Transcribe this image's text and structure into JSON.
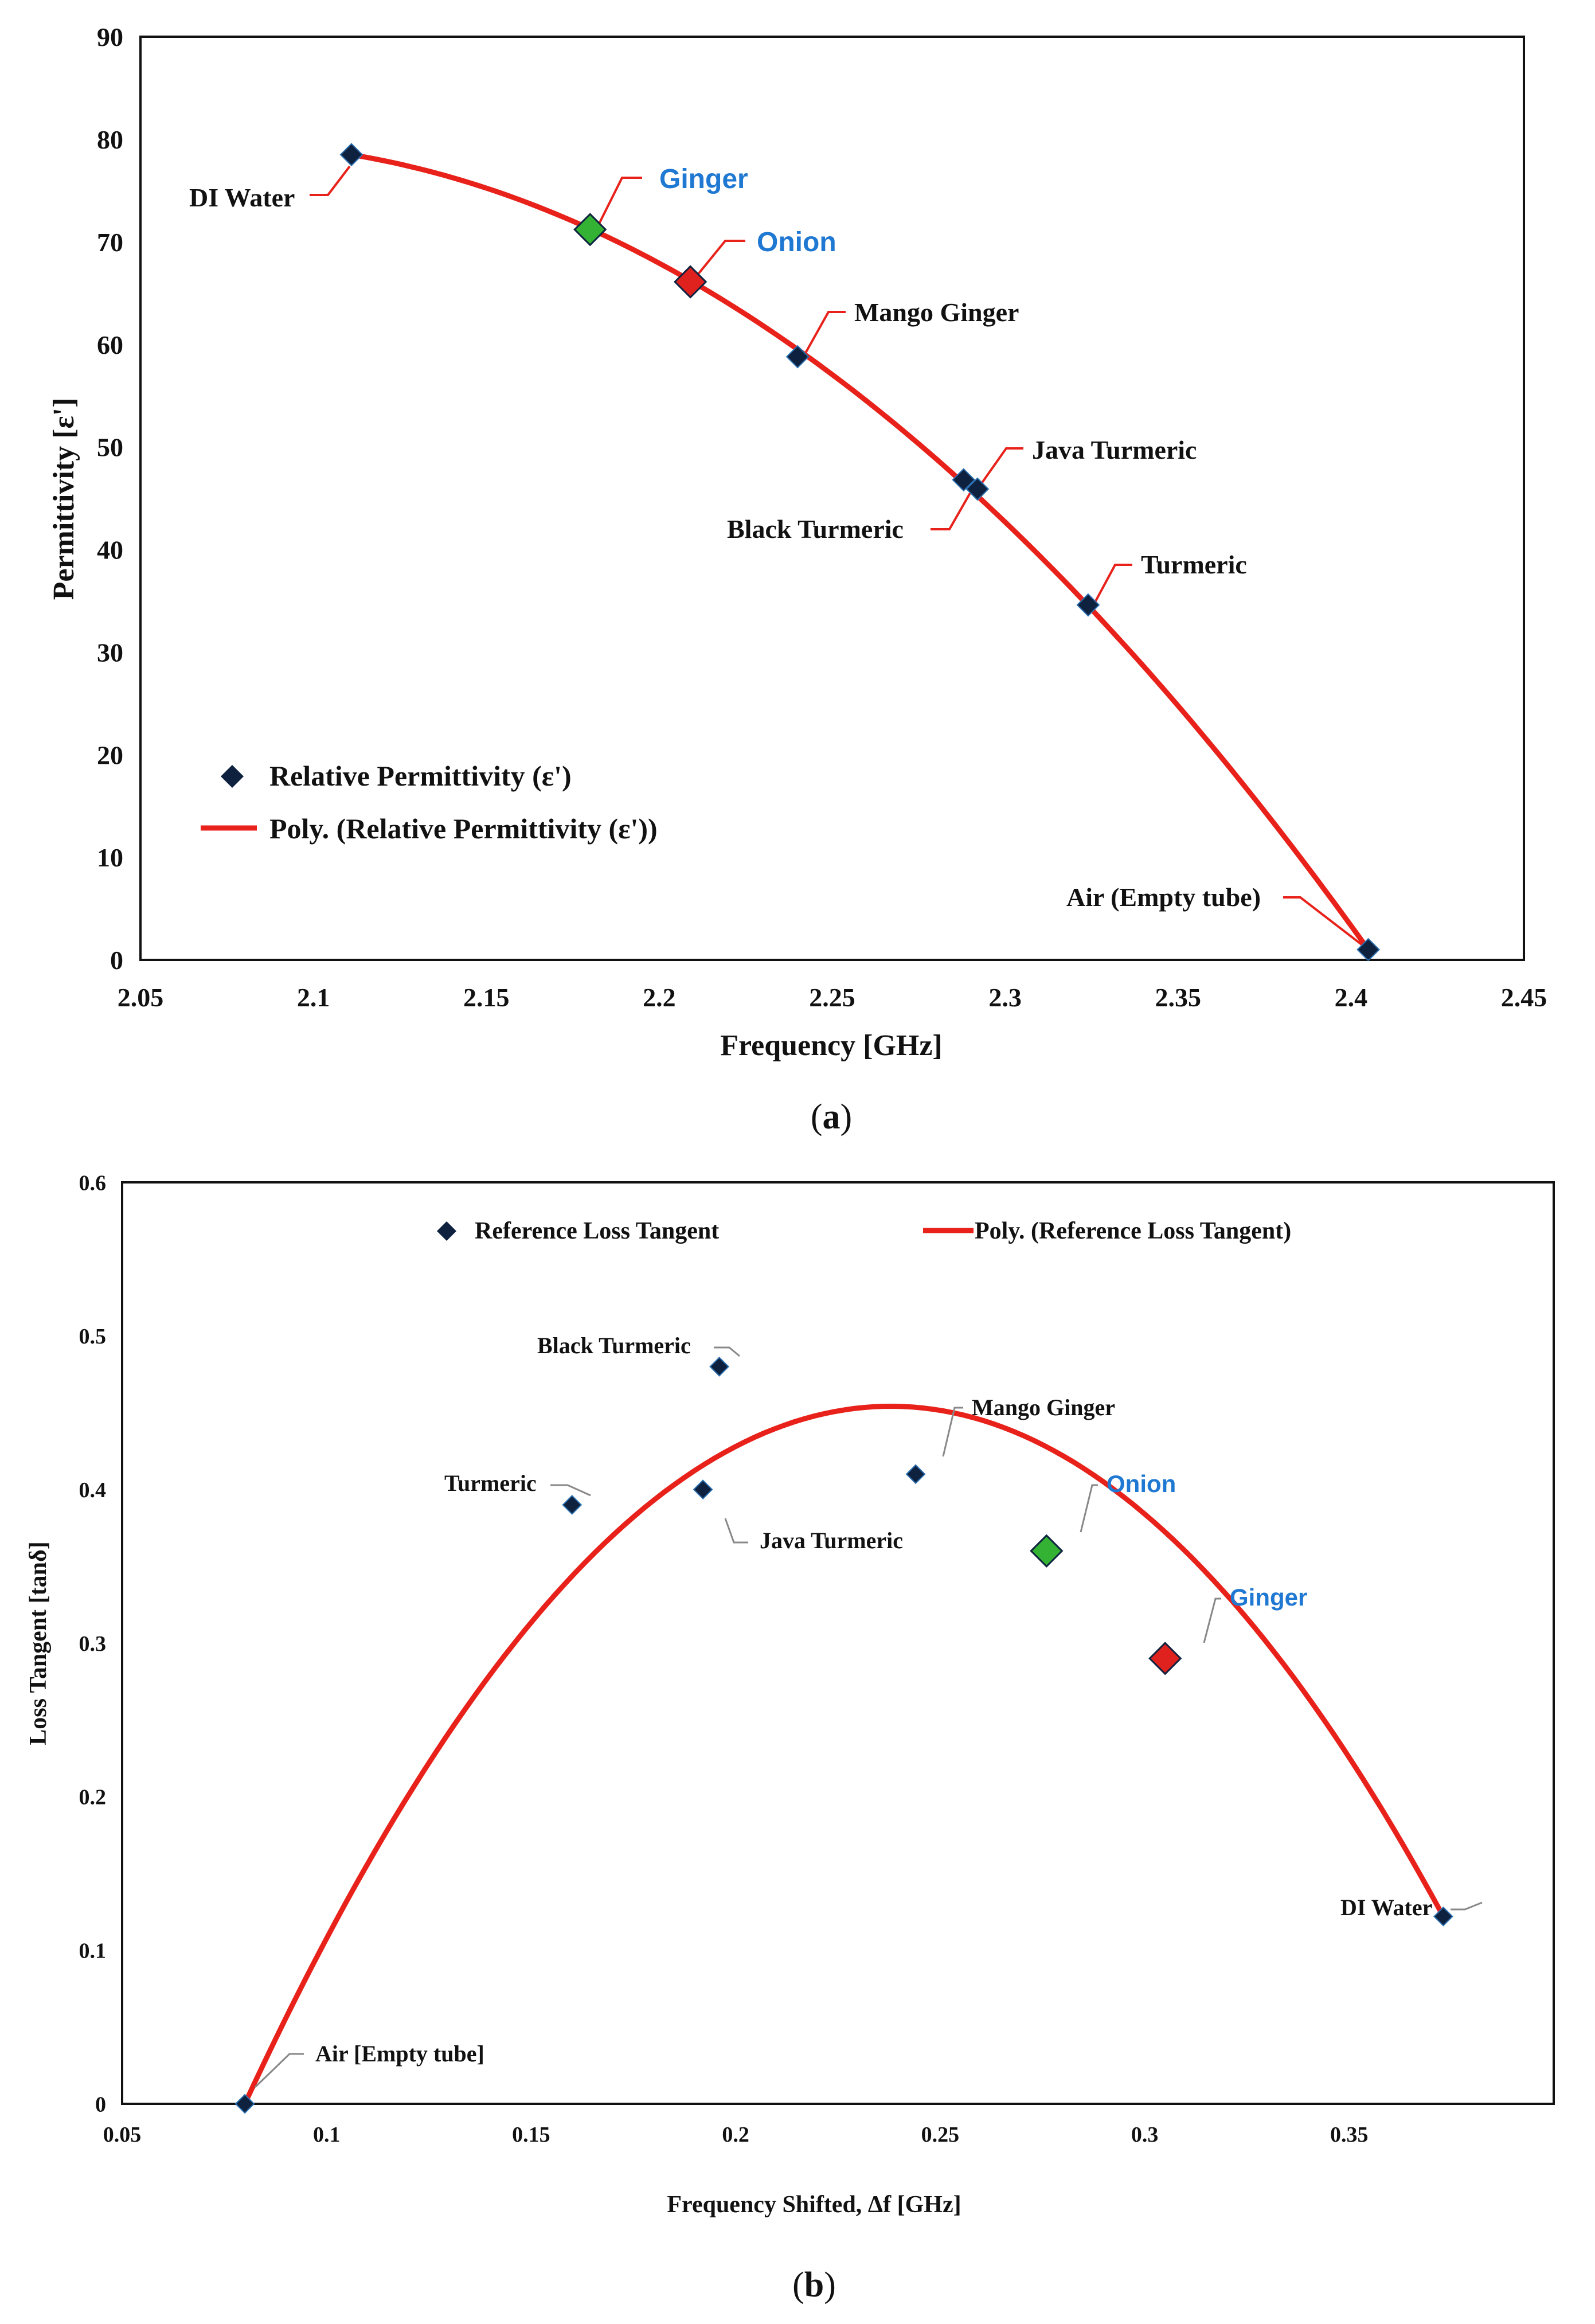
{
  "chart_data": [
    {
      "type": "scatter",
      "panel_label": "a",
      "xlabel": "Frequency [GHz]",
      "ylabel": "Permittivity [ε']",
      "xlim": [
        2.05,
        2.45
      ],
      "ylim": [
        0,
        90
      ],
      "xticks": [
        "2.05",
        "2.1",
        "2.15",
        "2.2",
        "2.25",
        "2.3",
        "2.35",
        "2.4",
        "2.45"
      ],
      "yticks": [
        "0",
        "10",
        "20",
        "30",
        "40",
        "50",
        "60",
        "70",
        "80",
        "90"
      ],
      "legend": [
        "Relative Permittivity (ε')",
        "Poly. (Relative Permittivity (ε'))"
      ],
      "series": [
        {
          "name": "Relative Permittivity (ε')",
          "points": [
            {
              "label": "DI Water",
              "x": 2.111,
              "y": 78.5,
              "color": "dark"
            },
            {
              "label": "Ginger",
              "x": 2.18,
              "y": 71.2,
              "color": "green",
              "highlight": true
            },
            {
              "label": "Onion",
              "x": 2.209,
              "y": 66.1,
              "color": "red",
              "highlight": true
            },
            {
              "label": "Mango Ginger",
              "x": 2.24,
              "y": 58.8,
              "color": "dark"
            },
            {
              "label": "Black Turmeric",
              "x": 2.288,
              "y": 46.8,
              "color": "dark"
            },
            {
              "label": "Java Turmeric",
              "x": 2.292,
              "y": 45.9,
              "color": "dark"
            },
            {
              "label": "Turmeric",
              "x": 2.324,
              "y": 34.6,
              "color": "dark"
            },
            {
              "label": "Air (Empty tube)",
              "x": 2.405,
              "y": 1.0,
              "color": "dark"
            }
          ]
        }
      ],
      "trend": {
        "name": "Poly. (Relative Permittivity (ε'))",
        "x_range": [
          2.111,
          2.405
        ],
        "anchors": [
          [
            2.111,
            78.5
          ],
          [
            2.258,
            55.0
          ],
          [
            2.405,
            1.0
          ]
        ]
      }
    },
    {
      "type": "scatter",
      "panel_label": "b",
      "xlabel": "Frequency Shifted, Δf [GHz]",
      "ylabel": "Loss Tangent [tanδ]",
      "xlim": [
        0.05,
        0.4
      ],
      "ylim": [
        0,
        0.6
      ],
      "xticks": [
        "0.05",
        "0.1",
        "0.15",
        "0.2",
        "0.25",
        "0.3",
        "0.35"
      ],
      "yticks": [
        "0",
        "0.1",
        "0.2",
        "0.3",
        "0.4",
        "0.5",
        "0.6"
      ],
      "legend": [
        "Reference Loss Tangent",
        "Poly. (Reference Loss Tangent)"
      ],
      "series": [
        {
          "name": "Reference Loss Tangent",
          "points": [
            {
              "label": "Air [Empty tube]",
              "x": 0.08,
              "y": 0.0,
              "color": "dark"
            },
            {
              "label": "Turmeric",
              "x": 0.16,
              "y": 0.39,
              "color": "dark"
            },
            {
              "label": "Java Turmeric",
              "x": 0.192,
              "y": 0.4,
              "color": "dark"
            },
            {
              "label": "Black Turmeric",
              "x": 0.196,
              "y": 0.48,
              "color": "dark"
            },
            {
              "label": "Mango Ginger",
              "x": 0.244,
              "y": 0.41,
              "color": "dark"
            },
            {
              "label": "Onion",
              "x": 0.276,
              "y": 0.36,
              "color": "green",
              "highlight": true
            },
            {
              "label": "Ginger",
              "x": 0.305,
              "y": 0.29,
              "color": "red",
              "highlight": true
            },
            {
              "label": "DI Water",
              "x": 0.373,
              "y": 0.122,
              "color": "dark"
            }
          ]
        }
      ],
      "trend": {
        "name": "Poly. (Reference Loss Tangent)",
        "x_range": [
          0.08,
          0.373
        ],
        "anchors": [
          [
            0.08,
            0.0
          ],
          [
            0.21,
            0.44
          ],
          [
            0.373,
            0.122
          ]
        ]
      }
    }
  ],
  "colors": {
    "trend": "#e8221b",
    "marker_dark": "#0e2240",
    "marker_green": "#33b233",
    "marker_red": "#e0221e",
    "blue_label": "#1f78d1",
    "leader": "#e8221b",
    "leader_b": "#888888"
  }
}
